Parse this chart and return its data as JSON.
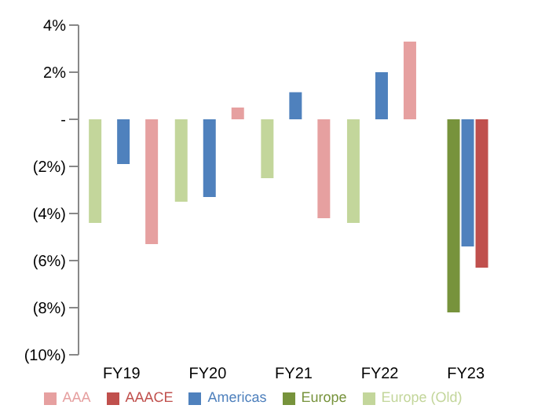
{
  "chart_data": {
    "type": "bar",
    "categories": [
      "FY19",
      "FY20",
      "FY21",
      "FY22",
      "FY23"
    ],
    "series": [
      {
        "name": "Europe (Old)",
        "color": "#c3d69b",
        "values": [
          -4.4,
          -3.5,
          -2.5,
          -4.4,
          null
        ]
      },
      {
        "name": "Europe",
        "color": "#77933c",
        "values": [
          null,
          null,
          null,
          null,
          -8.2
        ]
      },
      {
        "name": "Americas",
        "color": "#4f81bd",
        "values": [
          -1.9,
          -3.3,
          1.15,
          2.0,
          -5.4
        ]
      },
      {
        "name": "AAACE",
        "color": "#c0504d",
        "values": [
          null,
          null,
          null,
          null,
          -6.3
        ]
      },
      {
        "name": "AAA",
        "color": "#e6a0a0",
        "values": [
          -5.3,
          0.5,
          -4.2,
          3.3,
          null
        ]
      }
    ],
    "ylim": [
      -10,
      4
    ],
    "yticks": [
      {
        "value": -10,
        "label": "(10%)"
      },
      {
        "value": -8,
        "label": "(8%)"
      },
      {
        "value": -6,
        "label": "(6%)"
      },
      {
        "value": -4,
        "label": "(4%)"
      },
      {
        "value": -2,
        "label": "(2%)"
      },
      {
        "value": 0,
        "label": "-"
      },
      {
        "value": 2,
        "label": "2%"
      },
      {
        "value": 4,
        "label": "4%"
      }
    ],
    "grid": false,
    "legend": "bottom"
  }
}
